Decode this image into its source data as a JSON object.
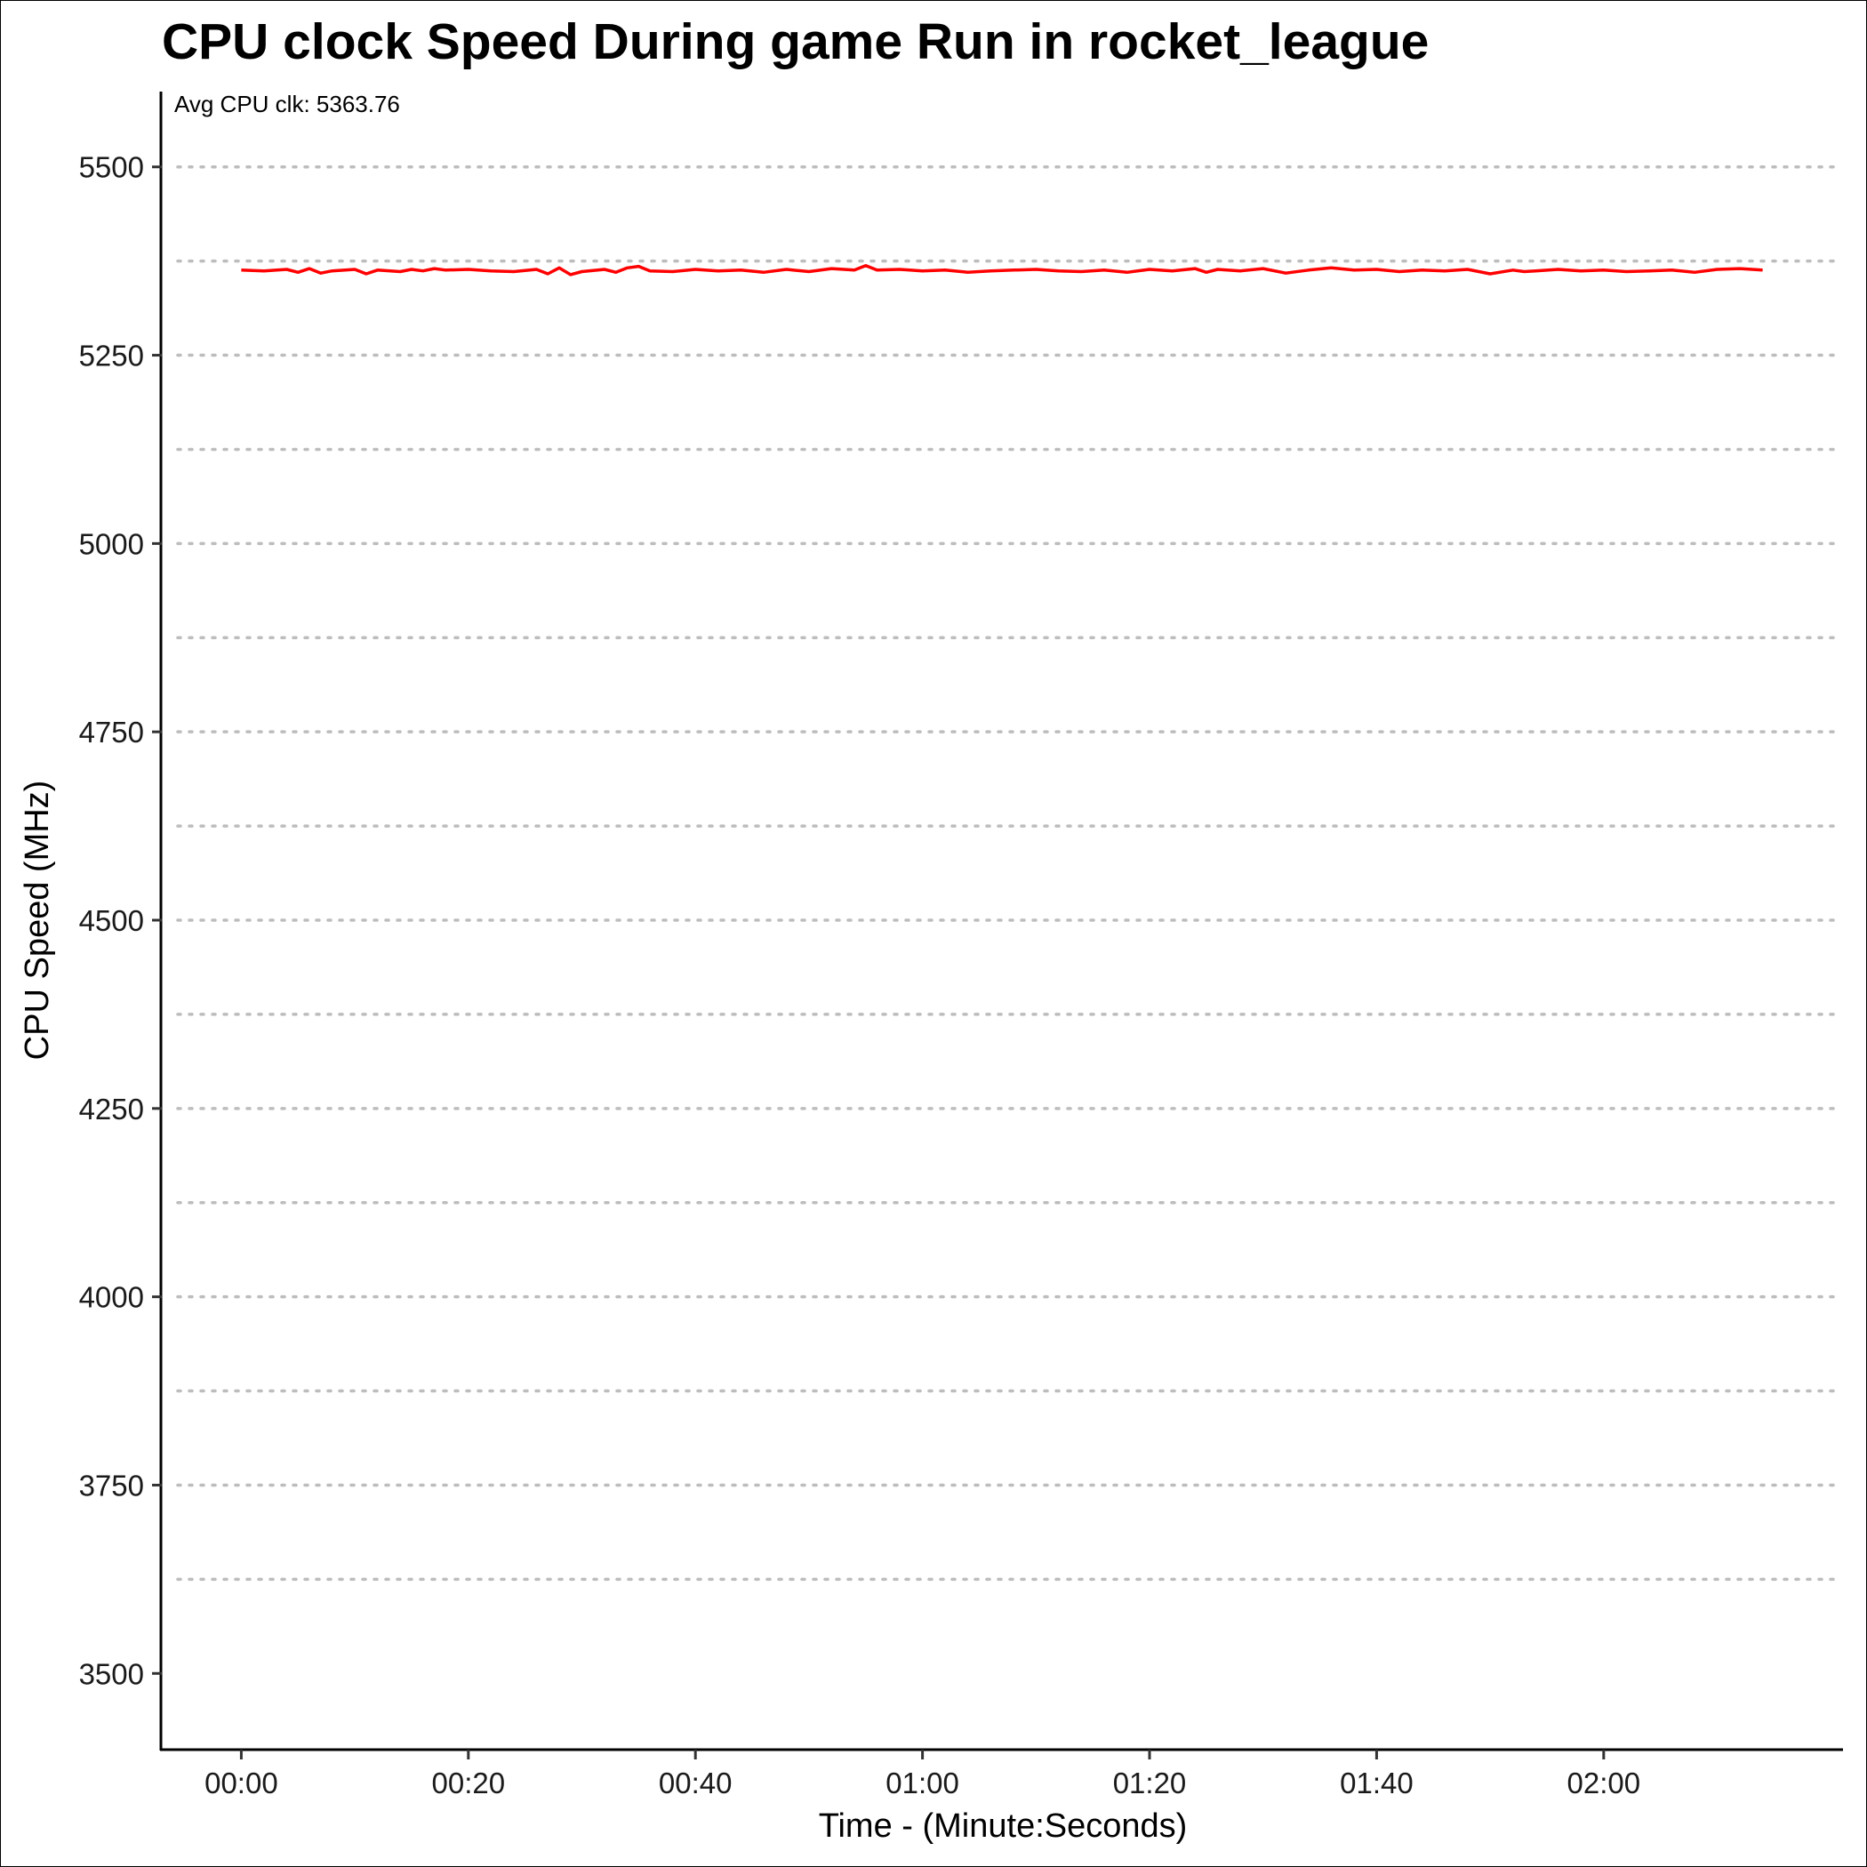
{
  "chart_data": {
    "type": "line",
    "title": "CPU clock Speed During game Run in rocket_league",
    "xlabel": "Time - (Minute:Seconds)",
    "ylabel": "CPU Speed (MHz)",
    "annotation": "Avg CPU clk: 5363.76",
    "x_unit": "seconds",
    "xlim": [
      -7,
      141
    ],
    "ylim": [
      3400,
      5600
    ],
    "x_ticks": [
      {
        "value": 0,
        "label": "00:00"
      },
      {
        "value": 20,
        "label": "00:20"
      },
      {
        "value": 40,
        "label": "00:40"
      },
      {
        "value": 60,
        "label": "01:00"
      },
      {
        "value": 80,
        "label": "01:20"
      },
      {
        "value": 100,
        "label": "01:40"
      },
      {
        "value": 120,
        "label": "02:00"
      }
    ],
    "y_ticks": [
      {
        "value": 3500,
        "label": "3500"
      },
      {
        "value": 3750,
        "label": "3750"
      },
      {
        "value": 4000,
        "label": "4000"
      },
      {
        "value": 4250,
        "label": "4250"
      },
      {
        "value": 4500,
        "label": "4500"
      },
      {
        "value": 4750,
        "label": "4750"
      },
      {
        "value": 5000,
        "label": "5000"
      },
      {
        "value": 5250,
        "label": "5250"
      },
      {
        "value": 5500,
        "label": "5500"
      }
    ],
    "y_grid": [
      3625,
      3750,
      3875,
      4000,
      4125,
      4250,
      4375,
      4500,
      4625,
      4750,
      4875,
      5000,
      5125,
      5250,
      5375,
      5500
    ],
    "grid": "horizontal dotted",
    "line_color": "#ff0000",
    "series": [
      {
        "x": [
          0,
          2,
          4,
          5,
          6,
          7,
          8,
          10,
          11,
          12,
          14,
          15,
          16,
          17,
          18,
          20,
          22,
          24,
          26,
          27,
          28,
          29,
          30,
          32,
          33,
          34,
          35,
          36,
          38,
          40,
          42,
          44,
          46,
          48,
          50,
          52,
          54,
          55,
          56,
          58,
          60,
          62,
          64,
          66,
          68,
          70,
          72,
          74,
          76,
          78,
          80,
          82,
          84,
          85,
          86,
          88,
          90,
          92,
          94,
          96,
          98,
          100,
          102,
          104,
          106,
          108,
          110,
          112,
          113,
          114,
          116,
          118,
          120,
          122,
          124,
          126,
          128,
          130,
          132,
          134
        ],
        "values": [
          5363,
          5362,
          5364,
          5360,
          5365,
          5359,
          5362,
          5364,
          5358,
          5363,
          5361,
          5364,
          5362,
          5365,
          5363,
          5364,
          5362,
          5361,
          5364,
          5358,
          5366,
          5357,
          5361,
          5364,
          5360,
          5366,
          5368,
          5362,
          5361,
          5364,
          5362,
          5363,
          5360,
          5364,
          5361,
          5365,
          5363,
          5369,
          5363,
          5364,
          5362,
          5363,
          5360,
          5362,
          5363,
          5364,
          5362,
          5361,
          5363,
          5360,
          5364,
          5362,
          5365,
          5360,
          5364,
          5362,
          5365,
          5359,
          5363,
          5366,
          5363,
          5364,
          5361,
          5363,
          5362,
          5364,
          5358,
          5363,
          5361,
          5362,
          5364,
          5362,
          5363,
          5361,
          5362,
          5363,
          5360,
          5364,
          5365,
          5363
        ]
      }
    ]
  }
}
